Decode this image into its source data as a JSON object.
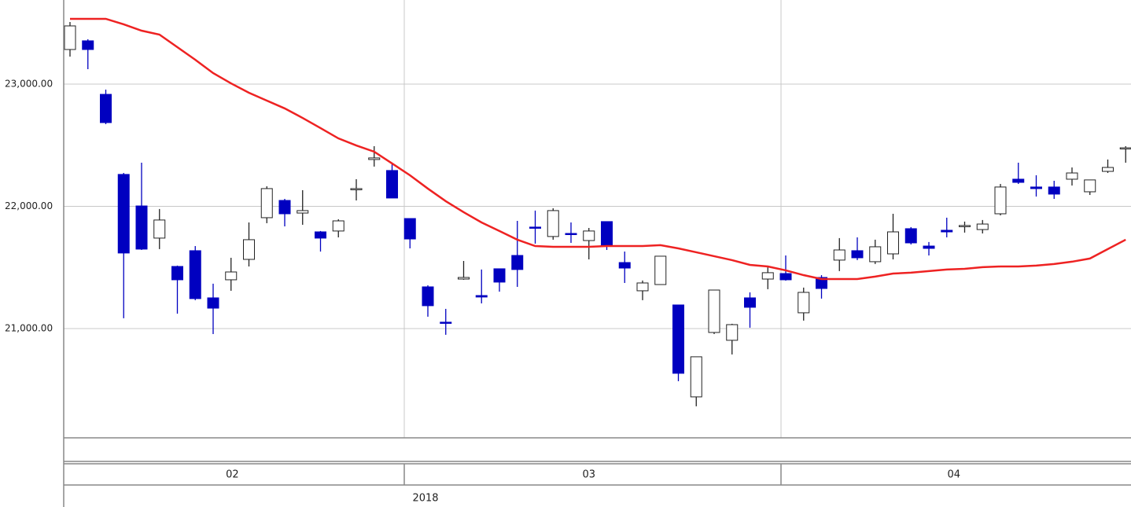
{
  "chart_data": {
    "type": "candlestick",
    "categories": [
      null,
      null,
      null,
      null,
      null,
      null,
      null,
      null,
      null,
      null,
      null,
      null,
      null,
      null,
      null,
      null,
      null,
      null,
      null,
      null,
      null,
      null,
      null,
      null,
      null,
      null,
      null,
      null,
      null,
      null,
      null,
      null,
      null,
      null,
      null,
      null,
      null,
      null,
      null,
      null,
      null,
      null,
      null,
      null,
      null,
      null,
      null,
      null,
      null,
      null,
      null,
      null,
      null,
      null,
      null,
      null,
      null,
      null,
      null,
      null
    ],
    "months": [
      "02",
      "03",
      "04"
    ],
    "year": "2018",
    "open": [
      23283,
      23354,
      22916,
      22261,
      22003,
      21740,
      21508,
      21637,
      21251,
      21399,
      21566,
      21907,
      22048,
      21945,
      21791,
      21798,
      22138,
      22383,
      22293,
      21900,
      21341,
      21052,
      21405,
      21270,
      21489,
      21598,
      21830,
      21753,
      21778,
      21720,
      21875,
      21540,
      21309,
      21360,
      21193,
      20441,
      20968,
      20904,
      21251,
      21405,
      21450,
      21129,
      21418,
      21560,
      21637,
      21547,
      21611,
      21817,
      21675,
      21804,
      21836,
      21810,
      21939,
      22222,
      22158,
      22158,
      22222,
      22119,
      22286,
      22473
    ],
    "high": [
      23508,
      23367,
      22955,
      22273,
      22357,
      21978,
      21515,
      21675,
      21367,
      21579,
      21868,
      22164,
      22061,
      22132,
      21798,
      21894,
      22222,
      22492,
      22357,
      21900,
      21354,
      21161,
      21553,
      21483,
      21489,
      21881,
      21965,
      21984,
      21868,
      21823,
      21875,
      21630,
      21393,
      21592,
      21193,
      20769,
      21315,
      21039,
      21296,
      21502,
      21598,
      21335,
      21437,
      21740,
      21746,
      21727,
      21939,
      21830,
      21708,
      21907,
      21875,
      21888,
      22183,
      22357,
      22254,
      22209,
      22318,
      22216,
      22383,
      22492
    ],
    "low": [
      23225,
      23122,
      22672,
      21084,
      21643,
      21650,
      21122,
      21232,
      20955,
      21309,
      21508,
      21862,
      21836,
      21849,
      21630,
      21746,
      22048,
      22325,
      22068,
      21656,
      21097,
      20949,
      21399,
      21206,
      21302,
      21341,
      21695,
      21727,
      21701,
      21566,
      21643,
      21373,
      21232,
      21360,
      20569,
      20364,
      20955,
      20788,
      21007,
      21322,
      21392,
      21065,
      21245,
      21470,
      21560,
      21528,
      21566,
      21688,
      21598,
      21746,
      21785,
      21778,
      21926,
      22183,
      22080,
      22061,
      22170,
      22093,
      22273,
      22357
    ],
    "close": [
      23476,
      23283,
      22685,
      21618,
      21650,
      21888,
      21399,
      21245,
      21167,
      21463,
      21727,
      22145,
      21939,
      21965,
      21740,
      21881,
      22145,
      22396,
      22068,
      21733,
      21187,
      21045,
      21418,
      21258,
      21380,
      21483,
      21823,
      21965,
      21772,
      21798,
      21676,
      21495,
      21373,
      21592,
      20634,
      20769,
      21315,
      21032,
      21174,
      21457,
      21399,
      21296,
      21328,
      21643,
      21579,
      21669,
      21791,
      21701,
      21656,
      21791,
      21843,
      21855,
      22158,
      22196,
      22145,
      22100,
      22273,
      22216,
      22318,
      22479
    ],
    "up_color": "#ffffff",
    "down_color": "#0000c0",
    "edge_color": "#222222",
    "moving_average": {
      "color": "#ee2222",
      "values": [
        23534,
        23534,
        23534,
        23489,
        23437,
        23405,
        23302,
        23199,
        23090,
        23006,
        22929,
        22865,
        22801,
        22723,
        22640,
        22556,
        22498,
        22447,
        22351,
        22254,
        22145,
        22042,
        21952,
        21868,
        21798,
        21727,
        21675,
        21669,
        21669,
        21669,
        21675,
        21675,
        21675,
        21682,
        21656,
        21624,
        21592,
        21560,
        21521,
        21508,
        21476,
        21437,
        21405,
        21405,
        21405,
        21425,
        21450,
        21457,
        21470,
        21483,
        21489,
        21502,
        21508,
        21508,
        21515,
        21528,
        21547,
        21573,
        21650,
        21727
      ]
    },
    "ylim": [
      20106,
      23688
    ],
    "yticks": [
      {
        "value": 21000,
        "label": "21,000.00"
      },
      {
        "value": 22000,
        "label": "22,000.00"
      },
      {
        "value": 23000,
        "label": "23,000.00"
      }
    ],
    "grid": true
  }
}
